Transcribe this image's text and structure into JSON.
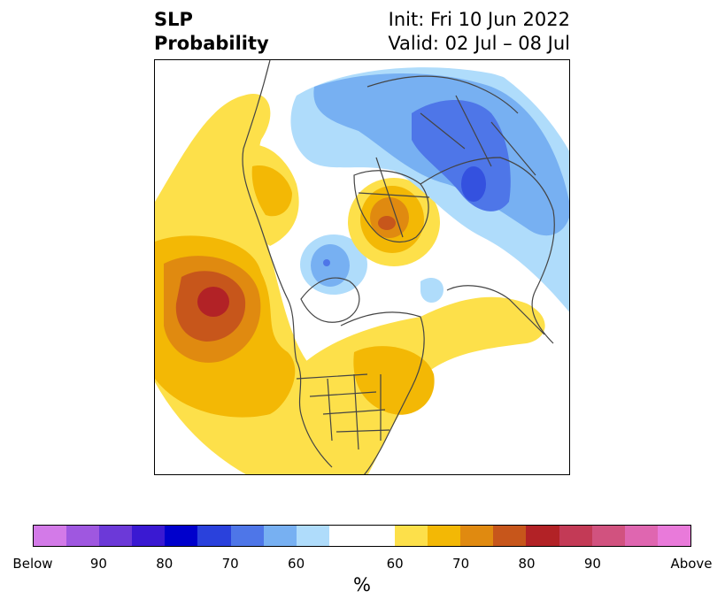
{
  "title": {
    "left_line1": "SLP",
    "left_line2": "Probability",
    "right_line1": "Init: Fri 10 Jun 2022",
    "right_line2": "Valid: 02 Jul – 08 Jul"
  },
  "colorbar": {
    "unit": "%",
    "colors": [
      "#d37ae8",
      "#9f57e0",
      "#6c39d8",
      "#3a19d2",
      "#0000cc",
      "#2a41dc",
      "#4e76e8",
      "#77b0f2",
      "#afdcfb",
      "#ffffff",
      "#ffffff",
      "#fde04a",
      "#f3b805",
      "#e08a10",
      "#c7561b",
      "#b22226",
      "#c33a56",
      "#d1527f",
      "#df66b0",
      "#e97ada"
    ],
    "labels": [
      "Below",
      "90",
      "80",
      "70",
      "60",
      "60",
      "70",
      "80",
      "90",
      "Above"
    ],
    "legend_colors": {
      "blue_light": "#afdcfb",
      "blue_mid": "#77b0f2",
      "blue_dark": "#4e76e8",
      "yellow": "#fde04a",
      "gold": "#f3b805",
      "orange": "#e08a10",
      "dark_orange": "#c7561b",
      "red": "#b22226"
    }
  }
}
